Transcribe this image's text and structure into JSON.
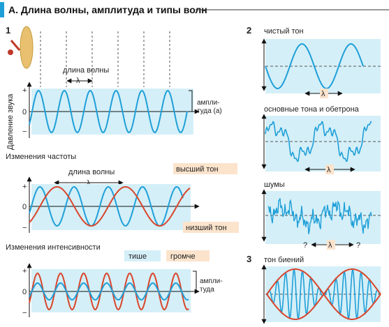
{
  "title": "А. Длина волны, амплитуда и типы волн",
  "panel1": {
    "number": "1",
    "wavelength_label": "длина волны",
    "lambda": "λ",
    "y_axis_label": "Давление звука",
    "amplitude_label_1": "ампли-",
    "amplitude_label_2": "туда (a)",
    "plus": "+",
    "zero": "0",
    "minus": "−"
  },
  "frequency": {
    "heading": "Изменения частоты",
    "wavelength_label": "длина волны",
    "lambda": "λ",
    "high_tone": "высший тон",
    "low_tone": "низший тон",
    "plus": "+",
    "zero": "0",
    "minus": "−"
  },
  "intensity": {
    "heading": "Изменения интенсивности",
    "quieter": "тише",
    "louder": "громче",
    "amplitude_label_1": "ампли-",
    "amplitude_label_2": "туда",
    "plus": "+",
    "zero": "0",
    "minus": "−"
  },
  "panel2": {
    "number": "2",
    "pure_tone": "чистый тон",
    "fundamental_overtones": "основные тона и обетрона",
    "noise": "шумы",
    "lambda": "λ",
    "question": "?"
  },
  "panel3": {
    "number": "3",
    "beat_tone": "тон биений"
  },
  "colors": {
    "blue": "#1f9fd8",
    "red": "#d9452b",
    "panel_bg": "#d4eff8",
    "highlight": "#fbe3cc"
  }
}
